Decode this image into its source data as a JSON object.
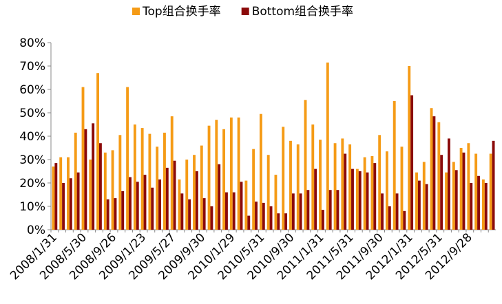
{
  "chart_data": {
    "type": "bar",
    "categories": [
      "2008/1/31",
      null,
      null,
      null,
      "2008/5/30",
      null,
      null,
      null,
      "2008/9/26",
      null,
      null,
      null,
      "2009/1/23",
      null,
      null,
      null,
      "2009/5/27",
      null,
      null,
      null,
      "2009/9/30",
      null,
      null,
      null,
      "2010/1/29",
      null,
      null,
      null,
      "2010/5/31",
      null,
      null,
      null,
      "2010/9/30",
      null,
      null,
      null,
      "2011/1/31",
      null,
      null,
      null,
      "2011/5/31",
      null,
      null,
      null,
      "2011/9/30",
      null,
      null,
      null,
      "2012/1/31",
      null,
      null,
      null,
      "2012/5/31",
      null,
      null,
      null,
      "2012/9/28",
      null,
      null,
      null
    ],
    "series": [
      {
        "name": "Top组合换手率",
        "color": "#f59b16",
        "values": [
          27,
          31,
          31,
          41.5,
          61,
          30,
          67,
          33,
          34,
          40.5,
          61,
          45,
          43.5,
          41,
          35.5,
          41.5,
          48.5,
          21.5,
          30,
          32,
          36,
          44.5,
          47,
          43,
          48,
          48,
          21,
          34.5,
          49.5,
          32,
          23.5,
          44,
          38,
          36.5,
          55.5,
          45,
          38.5,
          71.5,
          37,
          39,
          36.5,
          26,
          31,
          31.5,
          40.5,
          33.5,
          55,
          35.5,
          70,
          24.5,
          29,
          52,
          46,
          24.5,
          29,
          35,
          37,
          32.5,
          21.5,
          32.5
        ]
      },
      {
        "name": "Bottom组合换手率",
        "color": "#8b0a0a",
        "values": [
          28.5,
          20,
          22,
          24.5,
          43,
          45.5,
          37,
          13,
          13.5,
          16.5,
          22.5,
          20.5,
          23.5,
          18,
          21.5,
          26.5,
          29.5,
          15.5,
          13,
          25,
          13.5,
          10,
          28,
          16,
          16,
          20.5,
          6,
          12,
          11.5,
          10,
          7,
          7,
          15.5,
          15.5,
          17,
          26,
          8.5,
          17,
          17,
          32.5,
          26,
          25,
          24.5,
          28.5,
          15.5,
          10,
          15.5,
          8,
          57.5,
          21,
          19.5,
          48.5,
          32,
          39,
          25.5,
          33,
          20,
          23,
          20,
          38
        ]
      }
    ],
    "ylim": [
      0,
      80
    ],
    "yticks": [
      {
        "value": 0,
        "label": "0%"
      },
      {
        "value": 10,
        "label": "10%"
      },
      {
        "value": 20,
        "label": "20%"
      },
      {
        "value": 30,
        "label": "30%"
      },
      {
        "value": 40,
        "label": "40%"
      },
      {
        "value": 50,
        "label": "50%"
      },
      {
        "value": 60,
        "label": "60%"
      },
      {
        "value": 70,
        "label": "70%"
      },
      {
        "value": 80,
        "label": "80%"
      }
    ]
  }
}
